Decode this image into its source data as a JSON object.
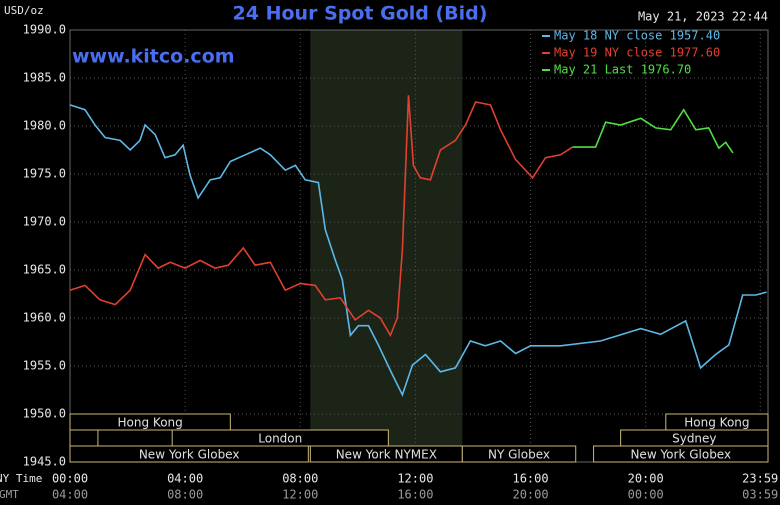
{
  "chart_data": {
    "type": "line",
    "title": "24 Hour Spot Gold (Bid)",
    "ylabel": "USD/oz",
    "timestamp": "May 21, 2023 22:44",
    "watermark": "www.kitco.com",
    "xlabel": "NY Time",
    "x2label": "GMT",
    "xlim": [
      0,
      24.25
    ],
    "ylim": [
      1945,
      1990
    ],
    "grid": true,
    "xticks": [
      {
        "value": 0,
        "label": "00:00"
      },
      {
        "value": 4,
        "label": "04:00"
      },
      {
        "value": 8,
        "label": "08:00"
      },
      {
        "value": 12,
        "label": "12:00"
      },
      {
        "value": 16,
        "label": "16:00"
      },
      {
        "value": 20,
        "label": "20:00"
      },
      {
        "value": 23.98,
        "label": "23:59"
      }
    ],
    "x2ticklabels": [
      "04:00",
      "08:00",
      "12:00",
      "16:00",
      "20:00",
      "00:00",
      "03:59"
    ],
    "yticks": [
      {
        "value": 1945,
        "label": "1945.0"
      },
      {
        "value": 1950,
        "label": "1950.0"
      },
      {
        "value": 1955,
        "label": "1955.0"
      },
      {
        "value": 1960,
        "label": "1960.0"
      },
      {
        "value": 1965,
        "label": "1965.0"
      },
      {
        "value": 1970,
        "label": "1970.0"
      },
      {
        "value": 1975,
        "label": "1975.0"
      },
      {
        "value": 1980,
        "label": "1980.0"
      },
      {
        "value": 1985,
        "label": "1985.0"
      },
      {
        "value": 1990,
        "label": "1990.0"
      }
    ],
    "shaded_range": [
      8.35,
      13.63
    ],
    "series": [
      {
        "name": "May 18 NY close 1957.40",
        "color": "#5cb8e6",
        "x": [
          0,
          0.52,
          0.87,
          1.22,
          1.74,
          2.09,
          2.43,
          2.61,
          2.96,
          3.3,
          3.65,
          3.93,
          4.17,
          4.45,
          4.87,
          5.22,
          5.57,
          6.09,
          6.61,
          6.96,
          7.48,
          7.83,
          8.17,
          8.63,
          8.87,
          9.22,
          9.46,
          9.74,
          10.02,
          10.37,
          10.71,
          11.2,
          11.55,
          11.9,
          12.35,
          12.87,
          13.39,
          13.91,
          14.43,
          14.96,
          15.48,
          16.0,
          17.04,
          18.43,
          19.83,
          20.52,
          21.39,
          21.91,
          22.43,
          22.89,
          23.37,
          23.83,
          24.2
        ],
        "values": [
          1982.2,
          1981.7,
          1980.1,
          1978.8,
          1978.5,
          1977.5,
          1978.5,
          1980.1,
          1979.1,
          1976.7,
          1977.0,
          1978.0,
          1974.9,
          1972.5,
          1974.4,
          1974.6,
          1976.3,
          1977.0,
          1977.7,
          1977.0,
          1975.4,
          1975.9,
          1974.4,
          1974.1,
          1969.2,
          1966.0,
          1964.0,
          1958.2,
          1959.2,
          1959.2,
          1957.2,
          1954.1,
          1952.0,
          1955.1,
          1956.2,
          1954.4,
          1954.8,
          1957.6,
          1957.1,
          1957.6,
          1956.3,
          1957.1,
          1957.1,
          1957.6,
          1958.9,
          1958.3,
          1959.7,
          1954.8,
          1956.2,
          1957.2,
          1962.4,
          1962.4,
          1962.7
        ]
      },
      {
        "name": "May 19 NY close 1977.60",
        "color": "#e2402e",
        "x": [
          0,
          0.52,
          1.04,
          1.57,
          2.09,
          2.61,
          3.06,
          3.48,
          4.0,
          4.52,
          5.04,
          5.5,
          6.02,
          6.43,
          6.96,
          7.48,
          8.0,
          8.52,
          8.87,
          9.39,
          9.91,
          10.37,
          10.78,
          11.13,
          11.37,
          11.55,
          11.76,
          11.93,
          12.17,
          12.52,
          12.87,
          13.39,
          13.74,
          14.09,
          14.61,
          14.96,
          15.48,
          16.07,
          16.52,
          17.04,
          17.46
        ],
        "values": [
          1962.9,
          1963.4,
          1961.9,
          1961.4,
          1962.9,
          1966.6,
          1965.2,
          1965.8,
          1965.2,
          1966.0,
          1965.2,
          1965.5,
          1967.3,
          1965.5,
          1965.8,
          1962.9,
          1963.6,
          1963.4,
          1961.9,
          1962.1,
          1959.8,
          1960.8,
          1960.0,
          1958.2,
          1960.0,
          1967.1,
          1983.2,
          1975.9,
          1974.6,
          1974.4,
          1977.5,
          1978.5,
          1980.1,
          1982.5,
          1982.2,
          1979.6,
          1976.5,
          1974.6,
          1976.7,
          1977.0,
          1977.8
        ]
      },
      {
        "name": "May 21 Last 1976.70",
        "color": "#4fe040",
        "x": [
          17.46,
          18.26,
          18.61,
          19.13,
          19.83,
          20.35,
          20.87,
          21.32,
          21.74,
          22.19,
          22.54,
          22.78,
          23.03
        ],
        "values": [
          1977.8,
          1977.8,
          1980.4,
          1980.1,
          1980.8,
          1979.8,
          1979.6,
          1981.7,
          1979.6,
          1979.8,
          1977.7,
          1978.3,
          1977.2
        ]
      }
    ],
    "sessions": [
      {
        "label": "Hong Kong",
        "row": 0,
        "start": 0,
        "end": 5.57
      },
      {
        "label": "Hong Kong",
        "row": 0,
        "start": 20.7,
        "end": 24.25
      },
      {
        "row": 1,
        "start": 0,
        "end": 0.97
      },
      {
        "label": "London",
        "row": 1,
        "start": 3.55,
        "end": 11.06
      },
      {
        "label": "Sydney",
        "row": 1,
        "start": 19.13,
        "end": 24.25
      },
      {
        "label": "New York Globex",
        "row": 2,
        "start": 0,
        "end": 8.28
      },
      {
        "label": "New York NYMEX",
        "row": 2,
        "start": 8.35,
        "end": 13.63
      },
      {
        "label": "NY Globex",
        "row": 2,
        "start": 13.63,
        "end": 17.57
      },
      {
        "label": "New York Globex",
        "row": 2,
        "start": 18.19,
        "end": 24.25
      }
    ]
  }
}
